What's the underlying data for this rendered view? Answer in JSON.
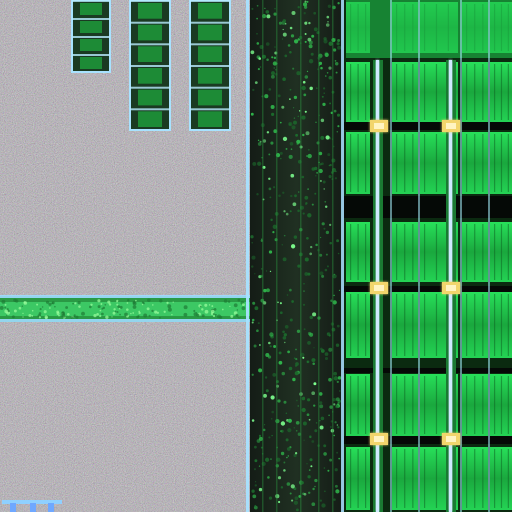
{
  "image": {
    "subject": "",
    "caption": ""
  },
  "palette": {
    "substrate_noise": "#5a5458",
    "substrate_speckle_green": "#3fae5a",
    "substrate_speckle_purple": "#6b5a7a",
    "trace_cyan": "#8fd7ff",
    "trace_white": "#e8f6ff",
    "strip_green_dark": "#0e3a1a",
    "strip_green_bright": "#2bd65b",
    "grid_green": "#1fbf3f",
    "grid_green_dark": "#0f6f22",
    "pad_yellow": "#f2d56c",
    "pad_orange": "#d9a43c",
    "black_bus": "#050705"
  }
}
